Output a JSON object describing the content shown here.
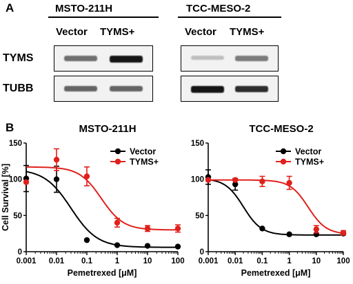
{
  "figure": {
    "panel_a_label": "A",
    "panel_b_label": "B"
  },
  "western_blot": {
    "cell_lines": [
      "MSTO-211H",
      "TCC-MESO-2"
    ],
    "lanes": [
      "Vector",
      "TYMS+"
    ],
    "proteins": [
      "TYMS",
      "TUBB"
    ],
    "band_intensity": {
      "MSTO-211H": {
        "TYMS": [
          0.55,
          0.95
        ],
        "TUBB": [
          0.6,
          0.6
        ]
      },
      "TCC-MESO-2": {
        "TYMS": [
          0.2,
          0.5
        ],
        "TUBB": [
          0.95,
          0.85
        ]
      }
    }
  },
  "chart_data": [
    {
      "type": "scatter",
      "title": "MSTO-211H",
      "xlabel": "Pemetrexed [μM]",
      "ylabel": "Cell Survival [%]",
      "x_scale": "log",
      "xlim": [
        0.001,
        100
      ],
      "ylim": [
        0,
        150
      ],
      "x_ticks": [
        "0.001",
        "0.01",
        "0.1",
        "1",
        "10",
        "100"
      ],
      "y_ticks": [
        "0",
        "50",
        "100",
        "150"
      ],
      "legend_position": "top-right",
      "x": [
        0.001,
        0.01,
        0.1,
        1,
        10,
        100
      ],
      "series": [
        {
          "name": "Vector",
          "color": "#000000",
          "values": [
            101,
            100,
            16,
            9,
            8,
            7
          ],
          "error": [
            18,
            18,
            0,
            0,
            0,
            0
          ],
          "fit": {
            "top": 114,
            "bottom": 6,
            "ic50": 0.03,
            "hill": 1.0
          }
        },
        {
          "name": "TYMS+",
          "color": "#e0201b",
          "values": [
            96,
            127,
            104,
            40,
            32,
            32
          ],
          "error": [
            0,
            15,
            13,
            6,
            4,
            5
          ],
          "fit": {
            "top": 117,
            "bottom": 30,
            "ic50": 0.3,
            "hill": 1.2
          }
        }
      ]
    },
    {
      "type": "scatter",
      "title": "TCC-MESO-2",
      "xlabel": "Pemetrexed [μM]",
      "ylabel": "",
      "x_scale": "log",
      "xlim": [
        0.001,
        100
      ],
      "ylim": [
        0,
        150
      ],
      "x_ticks": [
        "0.001",
        "0.01",
        "0.1",
        "1",
        "10",
        "100"
      ],
      "y_ticks": [
        "0",
        "50",
        "100",
        "150"
      ],
      "legend_position": "top-right",
      "x": [
        0.001,
        0.01,
        0.1,
        1,
        10,
        100
      ],
      "series": [
        {
          "name": "Vector",
          "color": "#000000",
          "values": [
            103,
            93,
            32,
            24,
            24,
            25
          ],
          "error": [
            10,
            8,
            0,
            0,
            0,
            0
          ],
          "fit": {
            "top": 101,
            "bottom": 23,
            "ic50": 0.02,
            "hill": 1.3
          }
        },
        {
          "name": "TYMS+",
          "color": "#e0201b",
          "values": [
            99,
            99,
            97,
            95,
            31,
            26
          ],
          "error": [
            0,
            0,
            7,
            9,
            5,
            3
          ],
          "fit": {
            "top": 99,
            "bottom": 24,
            "ic50": 5,
            "hill": 1.3
          }
        }
      ]
    }
  ]
}
